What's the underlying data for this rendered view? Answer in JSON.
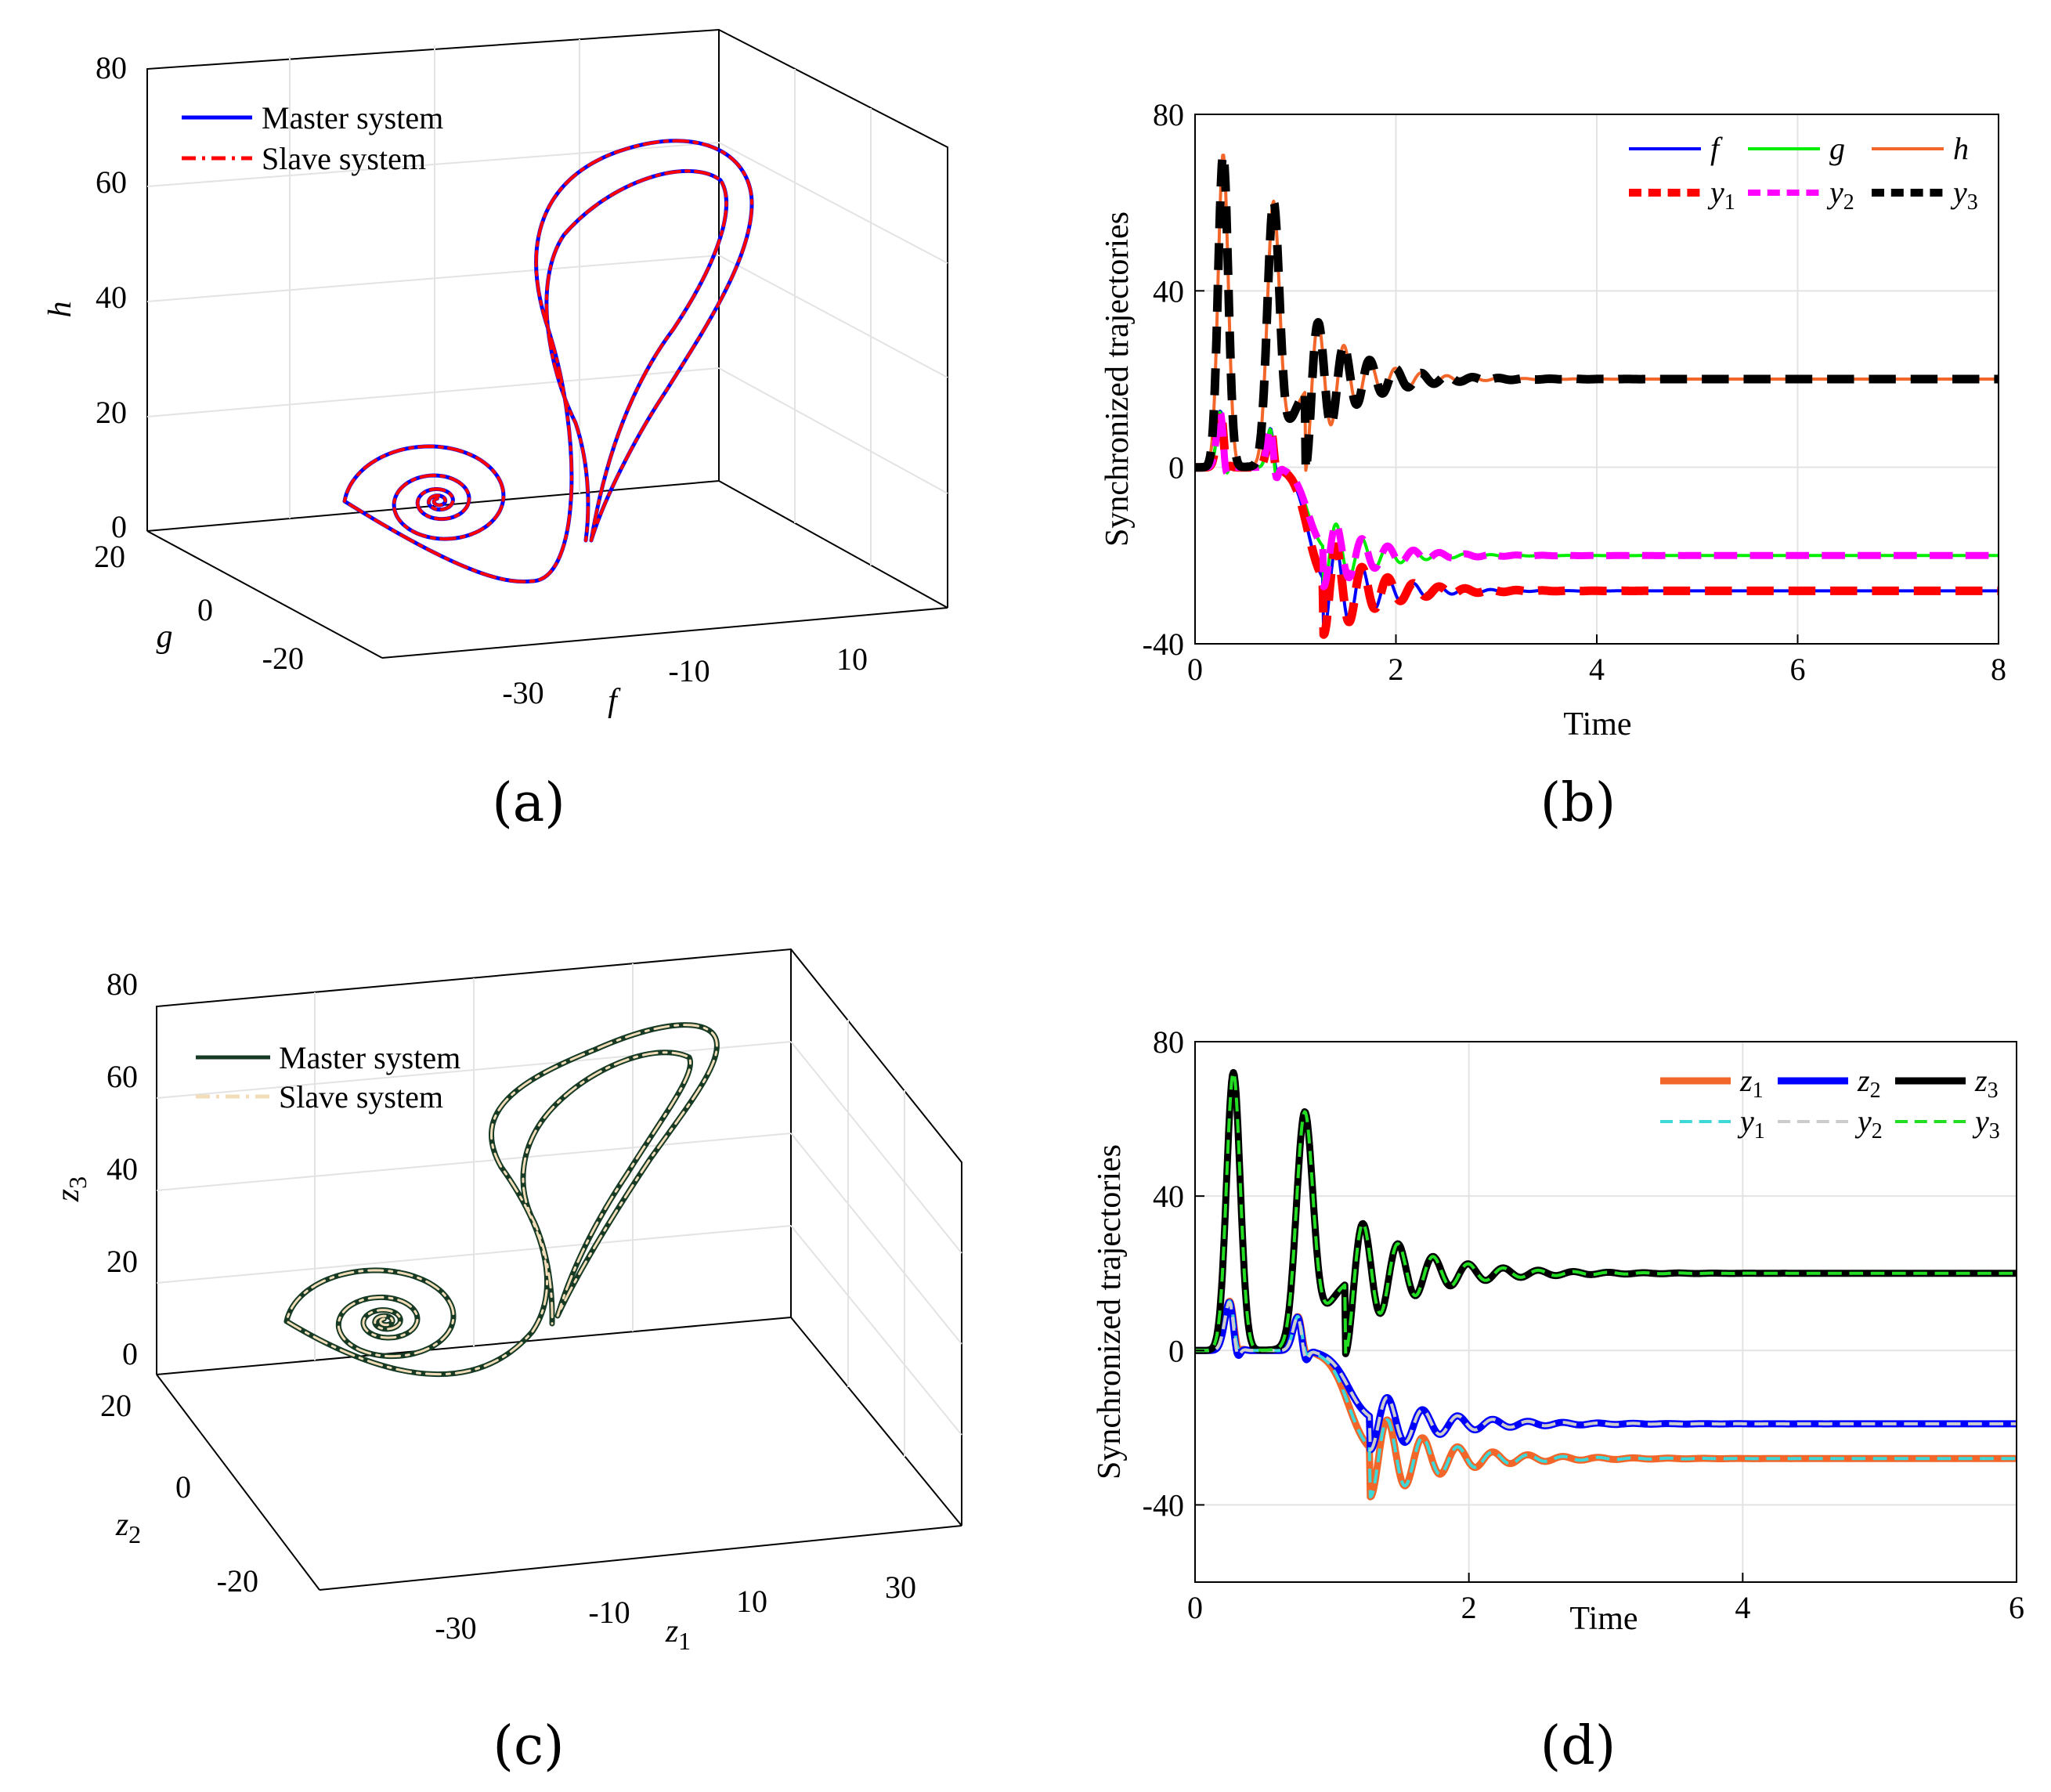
{
  "chart_data": [
    {
      "panel": "(a)",
      "type": "line",
      "projection": "3d",
      "xlabel": "f",
      "ylabel": "g",
      "zlabel": "h",
      "x_ticks": [
        "-30",
        "-10",
        "10"
      ],
      "y_ticks": [
        "20",
        "0",
        "-20"
      ],
      "z_ticks": [
        "0",
        "20",
        "40",
        "60",
        "80"
      ],
      "xlim": [
        -40,
        20
      ],
      "ylim": [
        -30,
        30
      ],
      "zlim": [
        0,
        80
      ],
      "legend": [
        "Master system",
        "Slave system"
      ],
      "series": [
        {
          "name": "Master system",
          "color": "#0000ff",
          "style": "solid"
        },
        {
          "name": "Slave system",
          "color": "#ff0000",
          "style": "dash-dot"
        }
      ],
      "grid": true,
      "legend_position": "top-left"
    },
    {
      "panel": "(b)",
      "type": "line",
      "xlabel": "Time",
      "ylabel": "Synchronized trajectories",
      "xlim": [
        0,
        8
      ],
      "ylim": [
        -40,
        80
      ],
      "x_ticks": [
        "0",
        "2",
        "4",
        "6",
        "8"
      ],
      "y_ticks": [
        "-40",
        "0",
        "40",
        "80"
      ],
      "steady_state": {
        "f": -28,
        "g": -20,
        "h": 20
      },
      "peaks": [
        {
          "t": 0.28,
          "h": 71
        },
        {
          "t": 0.78,
          "h": 64
        }
      ],
      "legend": [
        "f",
        "g",
        "h",
        "y1",
        "y2",
        "y3"
      ],
      "legend_rows": [
        [
          "f",
          "g",
          "h"
        ],
        [
          "y",
          "y",
          "y"
        ]
      ],
      "legend_subs": [
        "",
        "",
        "",
        "1",
        "2",
        "3"
      ],
      "series": [
        {
          "name": "f",
          "color": "#0000ff",
          "style": "solid",
          "final": -28
        },
        {
          "name": "g",
          "color": "#00ee00",
          "style": "solid",
          "final": -20
        },
        {
          "name": "h",
          "color": "#f2662a",
          "style": "solid",
          "final": 20
        },
        {
          "name": "y1",
          "color": "#ff0000",
          "style": "dashed",
          "final": -28
        },
        {
          "name": "y2",
          "color": "#ff00ff",
          "style": "dashed",
          "final": -20
        },
        {
          "name": "y3",
          "color": "#000000",
          "style": "dashed",
          "final": 20
        }
      ],
      "grid": true,
      "legend_position": "top-right"
    },
    {
      "panel": "(c)",
      "type": "line",
      "projection": "3d",
      "xlabel": "z1",
      "ylabel": "z2",
      "zlabel": "z3",
      "x_ticks": [
        "-30",
        "-10",
        "10",
        "30"
      ],
      "y_ticks": [
        "20",
        "0",
        "-20"
      ],
      "z_ticks": [
        "0",
        "20",
        "40",
        "60",
        "80"
      ],
      "xlim": [
        -40,
        40
      ],
      "ylim": [
        -30,
        30
      ],
      "zlim": [
        0,
        80
      ],
      "legend": [
        "Master system",
        "Slave system"
      ],
      "series": [
        {
          "name": "Master system",
          "color": "#163a24",
          "style": "solid"
        },
        {
          "name": "Slave system",
          "color": "#f3dcb8",
          "style": "dash-dot"
        }
      ],
      "grid": true,
      "legend_position": "top-left"
    },
    {
      "panel": "(d)",
      "type": "line",
      "xlabel": "Time",
      "ylabel": "Synchronized trajectories",
      "xlim": [
        0,
        6
      ],
      "ylim": [
        -60,
        80
      ],
      "x_ticks": [
        "0",
        "2",
        "4",
        "6"
      ],
      "y_ticks": [
        "-40",
        "0",
        "40",
        "80"
      ],
      "steady_state": {
        "z1": -28,
        "z2": -19,
        "z3": 20
      },
      "peaks": [
        {
          "t": 0.28,
          "z3": 72
        },
        {
          "t": 0.8,
          "z3": 65
        }
      ],
      "legend": [
        "z1",
        "z2",
        "z3",
        "y1",
        "y2",
        "y3"
      ],
      "legend_rows": [
        [
          "z",
          "z",
          "z"
        ],
        [
          "y",
          "y",
          "y"
        ]
      ],
      "legend_subs": [
        "1",
        "2",
        "3",
        "1",
        "2",
        "3"
      ],
      "series": [
        {
          "name": "z1",
          "color": "#f2662a",
          "style": "solid",
          "final": -28
        },
        {
          "name": "z2",
          "color": "#0000ff",
          "style": "solid",
          "final": -19
        },
        {
          "name": "z3",
          "color": "#000000",
          "style": "solid",
          "final": 20
        },
        {
          "name": "y1",
          "color": "#3fd8d8",
          "style": "dashed",
          "final": -28
        },
        {
          "name": "y2",
          "color": "#cccccc",
          "style": "dashed",
          "final": -19
        },
        {
          "name": "y3",
          "color": "#22dd22",
          "style": "dashed",
          "final": 20
        }
      ],
      "grid": true,
      "legend_position": "top-right"
    }
  ]
}
